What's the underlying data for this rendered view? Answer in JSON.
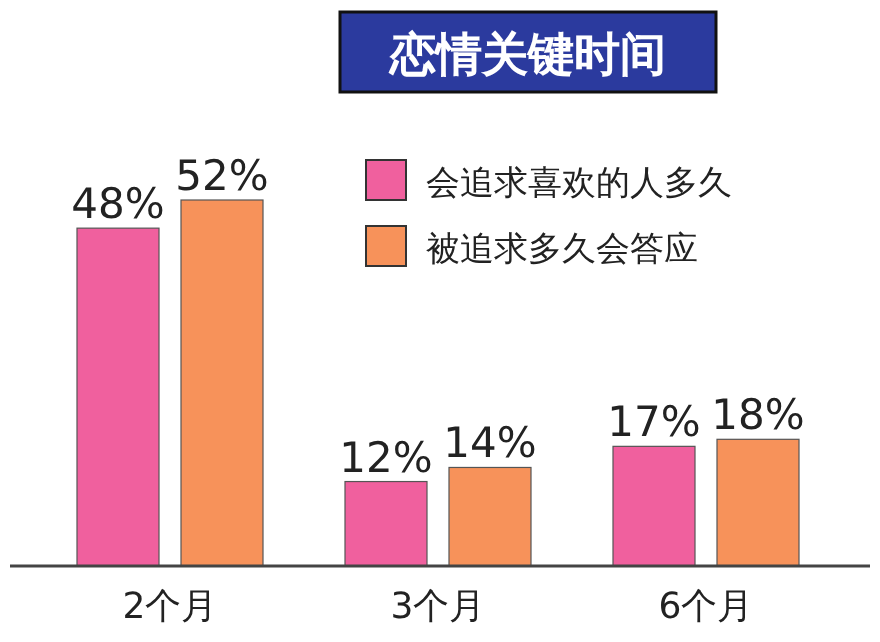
{
  "chart_data": {
    "type": "bar",
    "title": "恋情关键时间",
    "categories": [
      "2个月",
      "3个月",
      "6个月"
    ],
    "series": [
      {
        "name": "会追求喜欢的人多久",
        "color": "#f0609e",
        "values": [
          48,
          12,
          17
        ],
        "value_labels": [
          "48%",
          "12%",
          "17%"
        ]
      },
      {
        "name": "被追求多久会答应",
        "color": "#f7925a",
        "values": [
          52,
          14,
          18
        ],
        "value_labels": [
          "52%",
          "14%",
          "18%"
        ]
      }
    ],
    "legend": "top right"
  }
}
